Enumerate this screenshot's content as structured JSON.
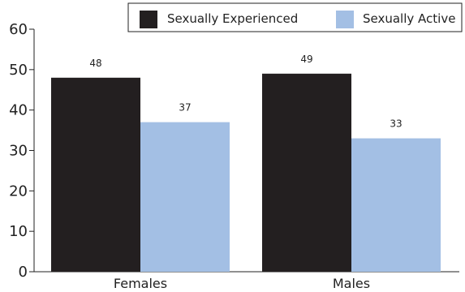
{
  "chart_data": {
    "type": "bar",
    "categories": [
      "Females",
      "Males"
    ],
    "series": [
      {
        "name": "Sexually Experienced",
        "values": [
          48,
          49
        ],
        "color": "#231f20"
      },
      {
        "name": "Sexually Active",
        "values": [
          37,
          33
        ],
        "color": "#a3bfe4"
      }
    ],
    "data_labels": [
      [
        "48",
        "49"
      ],
      [
        "37",
        "33"
      ]
    ],
    "yticks": [
      0,
      10,
      20,
      30,
      40,
      50,
      60
    ],
    "ylim": [
      0,
      60
    ],
    "title": "",
    "xlabel": "",
    "ylabel": "",
    "grid": false,
    "legend_position": "top-right"
  }
}
